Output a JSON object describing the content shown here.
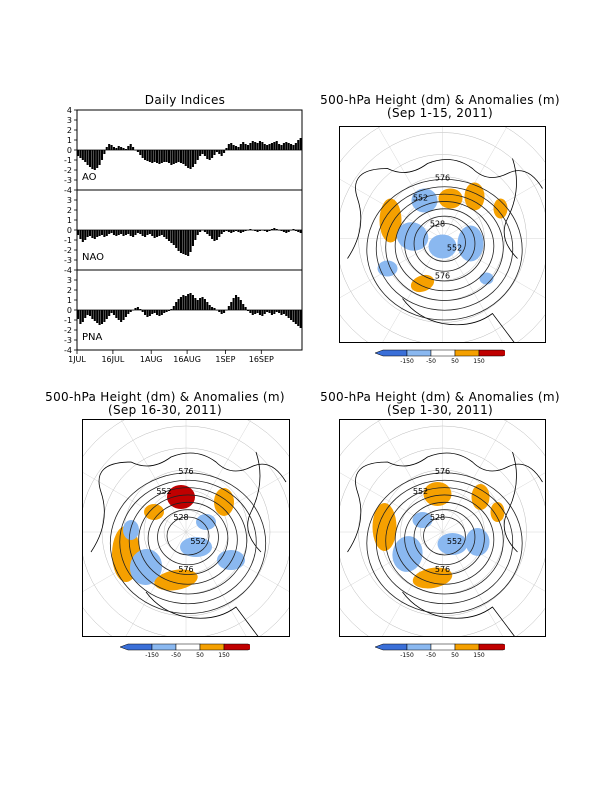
{
  "indices": {
    "title": "Daily Indices",
    "panels": [
      {
        "name": "AO",
        "ylim": [
          -4,
          4
        ]
      },
      {
        "name": "NAO",
        "ylim": [
          -4,
          4
        ]
      },
      {
        "name": "PNA",
        "ylim": [
          -4,
          4
        ]
      }
    ],
    "y_ticks": [
      -4,
      -3,
      -2,
      -1,
      0,
      1,
      2,
      3,
      4
    ],
    "x_tick_labels": [
      "1JUL",
      "16JUL",
      "1AUG",
      "16AUG",
      "1SEP",
      "16SEP"
    ]
  },
  "maps": [
    {
      "title_line1": "500-hPa Height (dm) & Anomalies (m)",
      "title_line2": "(Sep 1-15, 2011)",
      "contour_labels": [
        "576",
        "552",
        "528",
        "552",
        "576"
      ]
    },
    {
      "title_line1": "500-hPa Height (dm) & Anomalies (m)",
      "title_line2": "(Sep 16-30, 2011)",
      "contour_labels": [
        "576",
        "552",
        "528",
        "552",
        "576"
      ]
    },
    {
      "title_line1": "500-hPa Height (dm) & Anomalies (m)",
      "title_line2": "(Sep 1-30, 2011)",
      "contour_labels": [
        "576",
        "552",
        "528",
        "552",
        "576"
      ]
    }
  ],
  "colorbar": {
    "labels": [
      "-150",
      "-50",
      "50",
      "150"
    ],
    "colors": [
      "#3a6fd8",
      "#8ab8f0",
      "#ffffff",
      "#f5a000",
      "#c00000"
    ]
  },
  "chart_data": [
    {
      "type": "bar",
      "title": "Daily Indices",
      "x_start": "2011-07-01",
      "x_tick_labels": [
        "1JUL",
        "16JUL",
        "1AUG",
        "16AUG",
        "1SEP",
        "16SEP"
      ],
      "ylim": [
        -4,
        4
      ],
      "series": [
        {
          "name": "AO",
          "values": [
            -0.6,
            -0.8,
            -1.0,
            -1.2,
            -1.5,
            -1.7,
            -1.9,
            -2.0,
            -1.8,
            -1.5,
            -1.0,
            -0.4,
            0.3,
            0.6,
            0.5,
            0.3,
            0.2,
            0.4,
            0.3,
            0.2,
            0.1,
            0.4,
            0.6,
            0.3,
            0.0,
            -0.2,
            -0.5,
            -0.8,
            -1.0,
            -1.1,
            -1.2,
            -1.3,
            -1.2,
            -1.3,
            -1.4,
            -1.3,
            -1.2,
            -1.2,
            -1.3,
            -1.5,
            -1.4,
            -1.3,
            -1.2,
            -1.3,
            -1.4,
            -1.6,
            -1.8,
            -1.9,
            -1.7,
            -1.4,
            -1.0,
            -0.6,
            -0.4,
            -0.6,
            -0.9,
            -1.0,
            -0.8,
            -0.5,
            -0.2,
            -0.4,
            -0.6,
            -0.3,
            0.2,
            0.6,
            0.7,
            0.5,
            0.4,
            0.3,
            0.6,
            0.8,
            0.6,
            0.5,
            0.7,
            0.9,
            0.8,
            0.7,
            0.9,
            0.8,
            0.6,
            0.5,
            0.6,
            0.7,
            0.8,
            0.9,
            0.6,
            0.5,
            0.7,
            0.8,
            0.7,
            0.6,
            0.5,
            0.7,
            1.0,
            1.2
          ]
        },
        {
          "name": "NAO",
          "values": [
            -0.5,
            -0.9,
            -1.2,
            -1.0,
            -0.7,
            -0.6,
            -0.8,
            -0.9,
            -0.7,
            -0.6,
            -0.5,
            -0.7,
            -0.6,
            -0.4,
            -0.3,
            -0.5,
            -0.6,
            -0.5,
            -0.4,
            -0.6,
            -0.5,
            -0.4,
            -0.6,
            -0.7,
            -0.5,
            -0.3,
            -0.4,
            -0.6,
            -0.7,
            -0.5,
            -0.4,
            -0.6,
            -0.8,
            -0.7,
            -0.6,
            -0.5,
            -0.7,
            -0.9,
            -1.1,
            -1.3,
            -1.5,
            -1.8,
            -2.1,
            -2.3,
            -2.4,
            -2.5,
            -2.6,
            -2.2,
            -1.6,
            -1.0,
            -0.5,
            -0.2,
            0.0,
            -0.2,
            -0.4,
            -0.6,
            -0.9,
            -1.1,
            -1.0,
            -0.7,
            -0.4,
            -0.2,
            -0.1,
            -0.2,
            -0.3,
            -0.2,
            -0.1,
            -0.2,
            -0.3,
            -0.2,
            -0.1,
            0.0,
            0.1,
            0.0,
            -0.1,
            -0.2,
            -0.1,
            0.0,
            -0.1,
            -0.2,
            -0.1,
            0.1,
            0.2,
            0.1,
            0.0,
            -0.1,
            -0.2,
            -0.3,
            -0.2,
            0.0,
            0.1,
            -0.1,
            -0.2,
            -0.3
          ]
        },
        {
          "name": "PNA",
          "values": [
            -0.9,
            -1.4,
            -1.2,
            -0.8,
            -0.5,
            -0.6,
            -0.9,
            -1.1,
            -1.3,
            -1.5,
            -1.4,
            -1.2,
            -0.9,
            -0.6,
            -0.3,
            -0.5,
            -0.8,
            -1.0,
            -1.2,
            -1.0,
            -0.7,
            -0.4,
            -0.2,
            0.0,
            0.2,
            0.3,
            0.1,
            -0.2,
            -0.5,
            -0.7,
            -0.6,
            -0.4,
            -0.3,
            -0.5,
            -0.6,
            -0.5,
            -0.3,
            -0.2,
            -0.1,
            0.1,
            0.4,
            0.8,
            1.1,
            1.3,
            1.5,
            1.4,
            1.6,
            1.7,
            1.5,
            1.2,
            1.0,
            1.2,
            1.3,
            1.1,
            0.8,
            0.5,
            0.3,
            0.2,
            0.0,
            -0.2,
            -0.4,
            -0.3,
            0.0,
            0.4,
            0.8,
            1.2,
            1.5,
            1.3,
            1.0,
            0.6,
            0.3,
            -0.1,
            -0.3,
            -0.5,
            -0.4,
            -0.3,
            -0.5,
            -0.6,
            -0.4,
            -0.2,
            -0.3,
            -0.5,
            -0.4,
            -0.2,
            -0.3,
            -0.5,
            -0.4,
            -0.6,
            -0.8,
            -1.0,
            -1.2,
            -1.4,
            -1.6,
            -1.8
          ]
        }
      ]
    }
  ]
}
